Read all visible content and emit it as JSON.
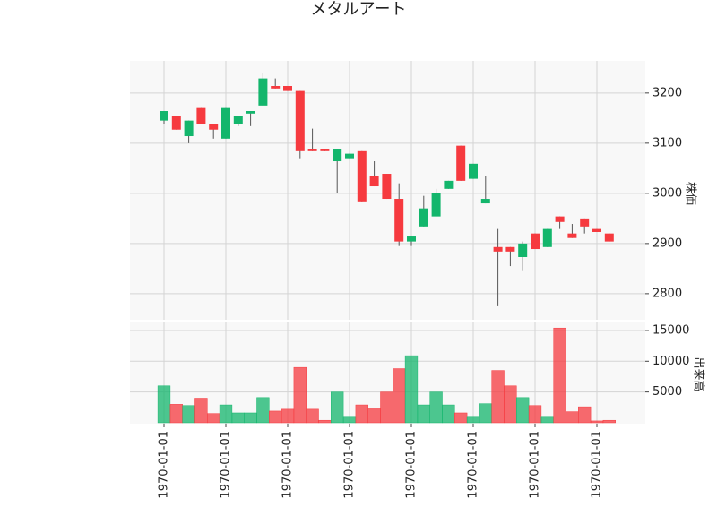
{
  "chart_data": {
    "type": "candlestick",
    "title": "メタルアート",
    "categories": [
      "1970-01-01",
      null,
      null,
      null,
      null,
      "1970-01-01",
      null,
      null,
      null,
      null,
      "1970-01-01",
      null,
      null,
      null,
      null,
      "1970-01-01",
      null,
      null,
      null,
      null,
      "1970-01-01",
      null,
      null,
      null,
      null,
      "1970-01-01",
      null,
      null,
      null,
      null,
      "1970-01-01",
      null,
      null,
      null,
      null,
      "1970-01-01",
      null
    ],
    "open": [
      3145,
      3154,
      3114,
      3170,
      3139,
      3109,
      3139,
      3159,
      3175,
      3214,
      3214,
      3204,
      3089,
      3089,
      3064,
      3070,
      3084,
      3034,
      3039,
      2989,
      2904,
      2934,
      2954,
      3009,
      3095,
      3029,
      2980,
      2893,
      2893,
      2873,
      2920,
      2893,
      2954,
      2920,
      2950,
      2929,
      2920
    ],
    "high": [
      3164,
      3154,
      3145,
      3170,
      3139,
      3170,
      3154,
      3164,
      3239,
      3229,
      3214,
      3204,
      3129,
      3089,
      3089,
      3079,
      3084,
      3064,
      3039,
      3020,
      2914,
      2995,
      3009,
      3025,
      3095,
      3059,
      3034,
      2929,
      2893,
      2904,
      2920,
      2929,
      2954,
      2939,
      2950,
      2929,
      2920
    ],
    "low": [
      3139,
      3127,
      3100,
      3139,
      3109,
      3109,
      3134,
      3134,
      3175,
      3209,
      3204,
      3070,
      3084,
      3084,
      3000,
      3070,
      2984,
      3014,
      2989,
      2895,
      2895,
      2934,
      2954,
      3009,
      3025,
      3029,
      2980,
      2775,
      2855,
      2845,
      2889,
      2893,
      2929,
      2911,
      2920,
      2923,
      2904
    ],
    "close": [
      3164,
      3127,
      3145,
      3139,
      3127,
      3170,
      3154,
      3164,
      3229,
      3209,
      3204,
      3084,
      3084,
      3084,
      3089,
      3079,
      2984,
      3014,
      2989,
      2904,
      2914,
      2970,
      3000,
      3025,
      3025,
      3059,
      2989,
      2884,
      2884,
      2900,
      2889,
      2929,
      2943,
      2911,
      2934,
      2923,
      2904
    ],
    "up_color": "#13b66c",
    "down_color": "#f63a3f",
    "ylim": [
      2748,
      3264
    ],
    "yticks": [
      2800,
      2900,
      3000,
      3100,
      3200
    ],
    "ylabel": "株価",
    "grid": true,
    "volume": {
      "values": [
        6000,
        3000,
        2800,
        4000,
        1500,
        2900,
        1600,
        1600,
        4100,
        1900,
        2200,
        9000,
        2200,
        400,
        5000,
        900,
        2900,
        2400,
        5000,
        8800,
        10900,
        2900,
        5000,
        2900,
        1600,
        900,
        3100,
        8500,
        6000,
        4100,
        2800,
        900,
        15400,
        1800,
        2600,
        300,
        400
      ],
      "ylim": [
        -150,
        16450
      ],
      "yticks": [
        5000,
        10000,
        15000
      ],
      "ylabel": "出来高"
    }
  }
}
